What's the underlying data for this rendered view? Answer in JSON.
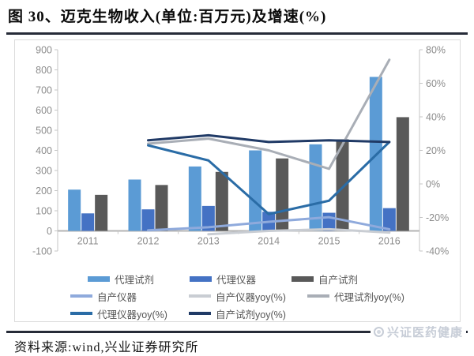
{
  "title": "图 30、迈克生物收入(单位:百万元)及增速(%)",
  "footer": {
    "source_text": "资料来源:wind,兴业证券研究所"
  },
  "watermark": {
    "text": "兴证医药健康",
    "icon": "ring-logo-icon",
    "color": "#c7cdd7"
  },
  "chart_data": {
    "type": "bar",
    "subtype": "grouped-bars-with-lines-dual-axis",
    "title": "迈克生物收入(单位:百万元)及增速(%)",
    "categories": [
      "2011",
      "2012",
      "2013",
      "2014",
      "2015",
      "2016"
    ],
    "left_axis": {
      "min": -100,
      "max": 900,
      "step": 100,
      "ticks": [
        "900",
        "800",
        "700",
        "600",
        "500",
        "400",
        "300",
        "200",
        "100",
        "0",
        "-100"
      ]
    },
    "right_axis": {
      "min": -40,
      "max": 80,
      "step": 20,
      "ticks": [
        "80%",
        "60%",
        "40%",
        "20%",
        "0%",
        "-20%",
        "-40%"
      ]
    },
    "grid": "off",
    "legend_position": "bottom",
    "bar_series": [
      {
        "name": "代理试剂",
        "color": "#5B9BD5",
        "axis": "left",
        "values": [
          205,
          255,
          320,
          400,
          430,
          765
        ]
      },
      {
        "name": "代理仪器",
        "color": "#4472C4",
        "axis": "left",
        "values": [
          87,
          107,
          124,
          95,
          90,
          113
        ]
      },
      {
        "name": "自产试剂",
        "color": "#595959",
        "axis": "left",
        "values": [
          179,
          228,
          293,
          360,
          455,
          565
        ]
      }
    ],
    "line_series": [
      {
        "name": "自产仪器",
        "color": "#8FAADC",
        "axis": "left",
        "values": [
          null,
          3,
          18,
          45,
          68,
          8
        ]
      },
      {
        "name": "自产仪器yoy(%)",
        "color": "#C9CDD3",
        "axis": "right",
        "values": [
          null,
          null,
          -30,
          -28,
          -27,
          -29
        ]
      },
      {
        "name": "代理试剂yoy(%)",
        "color": "#A9AEB6",
        "axis": "right",
        "values": [
          null,
          24,
          27,
          20,
          9,
          74
        ]
      },
      {
        "name": "代理仪器yoy(%)",
        "color": "#2A6CA6",
        "axis": "right",
        "values": [
          null,
          23,
          14,
          -18,
          -10,
          25
        ]
      },
      {
        "name": "自产试剂yoy(%)",
        "color": "#203A66",
        "axis": "right",
        "values": [
          null,
          26,
          29,
          25,
          26,
          25
        ]
      }
    ],
    "legend_rows": [
      [
        {
          "type": "bar",
          "label": "代理试剂",
          "color": "#5B9BD5"
        },
        {
          "type": "bar",
          "label": "代理仪器",
          "color": "#4472C4"
        },
        {
          "type": "bar",
          "label": "自产试剂",
          "color": "#595959"
        }
      ],
      [
        {
          "type": "line",
          "label": "自产仪器",
          "color": "#8FAADC"
        },
        {
          "type": "line",
          "label": "自产仪器yoy(%)",
          "color": "#C9CDD3"
        },
        {
          "type": "line",
          "label": "代理试剂yoy(%)",
          "color": "#A9AEB6"
        }
      ],
      [
        {
          "type": "line",
          "label": "代理仪器yoy(%)",
          "color": "#2A6CA6"
        },
        {
          "type": "line",
          "label": "自产试剂yoy(%)",
          "color": "#203A66"
        }
      ]
    ]
  }
}
